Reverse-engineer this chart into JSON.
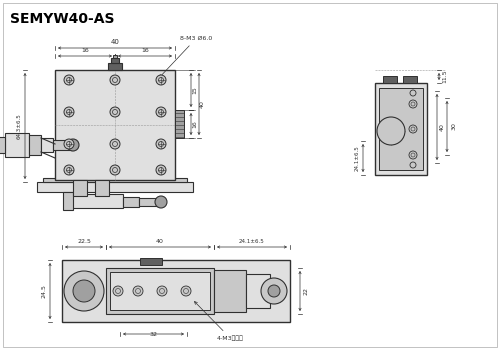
{
  "title": "SEMYW40-AS",
  "lc": "#303030",
  "bg": "white",
  "gray1": "#e0e0e0",
  "gray2": "#c8c8c8",
  "gray3": "#a0a0a0",
  "gray4": "#606060",
  "gray5": "#d8d8d8",
  "dims": {
    "front_top_40": "40",
    "front_top_16a": "16",
    "front_top_16b": "16",
    "front_left": "64.3±6.5",
    "front_right_40": "40",
    "front_right_15": "15",
    "front_right_16": "16",
    "hole_label": "8-M3 Ø6.0",
    "right_top": "11.5",
    "right_mid": "40",
    "right_right": "30",
    "right_bot": "24.1±6.5",
    "bot_22_5": "22.5",
    "bot_40": "40",
    "bot_24": "24.1±6.5",
    "bot_left_h": "24.5",
    "bot_right_h": "22",
    "bot_32": "32",
    "bot_holes": "4-M3凹底孔"
  }
}
